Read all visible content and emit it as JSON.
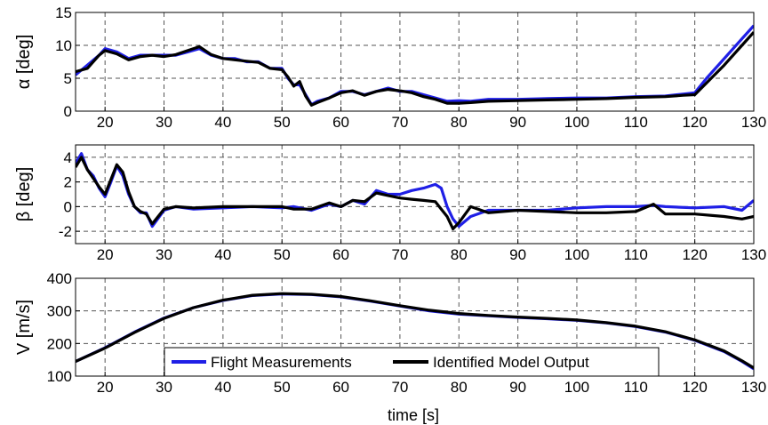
{
  "figure": {
    "xlabel": "time [s]",
    "legend": {
      "placement": "bottom-center",
      "entries": [
        {
          "label": "Flight Measurements",
          "color": "#1f1fe6"
        },
        {
          "label": "Identified Model Output",
          "color": "#000000"
        }
      ]
    }
  },
  "chart_data": [
    {
      "type": "line",
      "title": "",
      "xlabel": "",
      "ylabel": "α [deg]",
      "xlim": [
        15,
        130
      ],
      "ylim": [
        0,
        15
      ],
      "xticks": [
        "20",
        "30",
        "40",
        "50",
        "60",
        "70",
        "80",
        "90",
        "100",
        "110",
        "120",
        "130"
      ],
      "yticks": [
        "0",
        "5",
        "10",
        "15"
      ],
      "grid": true,
      "series": [
        {
          "name": "Flight Measurements",
          "color": "#1f1fe6",
          "x": [
            15,
            17,
            19,
            20,
            22,
            24,
            26,
            28,
            30,
            32,
            34,
            36,
            38,
            40,
            42,
            44,
            46,
            48,
            50,
            51,
            52,
            53,
            54,
            55,
            56,
            58,
            60,
            62,
            64,
            66,
            68,
            70,
            72,
            74,
            76,
            78,
            80,
            82,
            85,
            90,
            95,
            100,
            105,
            110,
            115,
            118,
            120,
            122,
            125,
            128,
            130
          ],
          "y": [
            5.5,
            7,
            8.5,
            9.5,
            9,
            8,
            8.5,
            8.5,
            8.5,
            8.5,
            9,
            9.5,
            8.5,
            8,
            8,
            7.5,
            7.5,
            6.5,
            6.5,
            5,
            4,
            4,
            2.5,
            1,
            1.5,
            2,
            3,
            3,
            2.5,
            3,
            3.5,
            3,
            3,
            2.5,
            2,
            1.5,
            1.6,
            1.5,
            1.8,
            1.8,
            1.9,
            2,
            2,
            2.2,
            2.3,
            2.6,
            2.8,
            5,
            8,
            11,
            13
          ]
        },
        {
          "name": "Identified Model Output",
          "color": "#000000",
          "x": [
            15,
            17,
            19,
            20,
            22,
            24,
            26,
            28,
            30,
            32,
            34,
            36,
            38,
            40,
            42,
            44,
            46,
            48,
            50,
            51,
            52,
            53,
            54,
            55,
            56,
            58,
            60,
            62,
            64,
            66,
            68,
            70,
            72,
            74,
            76,
            78,
            80,
            82,
            85,
            90,
            95,
            100,
            105,
            110,
            115,
            118,
            120,
            122,
            125,
            128,
            130
          ],
          "y": [
            6,
            6.5,
            8.5,
            9.2,
            8.7,
            7.8,
            8.3,
            8.5,
            8.3,
            8.6,
            9.2,
            9.8,
            8.6,
            8,
            7.8,
            7.6,
            7.4,
            6.5,
            6.3,
            5.2,
            3.8,
            4.5,
            2.3,
            0.9,
            1.3,
            2,
            2.8,
            3.1,
            2.4,
            3,
            3.3,
            3.1,
            2.8,
            2.2,
            1.8,
            1.2,
            1.2,
            1.3,
            1.5,
            1.6,
            1.7,
            1.8,
            1.9,
            2.1,
            2.2,
            2.4,
            2.5,
            4.3,
            7,
            10,
            12
          ]
        }
      ]
    },
    {
      "type": "line",
      "title": "",
      "xlabel": "",
      "ylabel": "β [deg]",
      "xlim": [
        15,
        130
      ],
      "ylim": [
        -3,
        5
      ],
      "xticks": [
        "20",
        "30",
        "40",
        "50",
        "60",
        "70",
        "80",
        "90",
        "100",
        "110",
        "120",
        "130"
      ],
      "yticks": [
        "-2",
        "0",
        "2",
        "4"
      ],
      "grid": true,
      "series": [
        {
          "name": "Flight Measurements",
          "color": "#1f1fe6",
          "x": [
            15,
            16,
            17,
            18,
            19,
            20,
            21,
            22,
            23,
            24,
            25,
            26,
            27,
            28,
            30,
            32,
            35,
            40,
            45,
            50,
            52,
            55,
            58,
            60,
            62,
            64,
            66,
            68,
            70,
            72,
            74,
            76,
            77,
            78,
            79,
            80,
            82,
            85,
            90,
            95,
            100,
            105,
            110,
            113,
            115,
            120,
            125,
            128,
            130
          ],
          "y": [
            3.5,
            4.3,
            3,
            2.5,
            1.5,
            0.8,
            2,
            3.3,
            2.5,
            1,
            0,
            -0.5,
            -0.5,
            -1.6,
            -0.3,
            0,
            -0.2,
            -0.1,
            0,
            -0.1,
            0,
            -0.3,
            0.2,
            0,
            0.5,
            0.2,
            1.3,
            1,
            1,
            1.3,
            1.5,
            1.8,
            1.5,
            0,
            -1,
            -1.6,
            -0.8,
            -0.3,
            -0.3,
            -0.3,
            -0.1,
            0,
            0,
            0.1,
            0,
            -0.1,
            0,
            -0.3,
            0.5
          ]
        },
        {
          "name": "Identified Model Output",
          "color": "#000000",
          "x": [
            15,
            16,
            17,
            18,
            19,
            20,
            21,
            22,
            23,
            24,
            25,
            26,
            27,
            28,
            30,
            32,
            35,
            40,
            45,
            50,
            52,
            55,
            58,
            60,
            62,
            64,
            66,
            68,
            70,
            72,
            74,
            76,
            77,
            78,
            79,
            80,
            82,
            85,
            90,
            95,
            100,
            105,
            110,
            113,
            115,
            120,
            125,
            128,
            130
          ],
          "y": [
            3.2,
            4,
            3,
            2.3,
            1.6,
            1,
            2.2,
            3.4,
            2.8,
            1.2,
            0,
            -0.4,
            -0.6,
            -1.4,
            -0.2,
            0,
            -0.1,
            0,
            0,
            0,
            -0.2,
            -0.2,
            0.3,
            0,
            0.5,
            0.4,
            1.1,
            0.9,
            0.7,
            0.6,
            0.5,
            0.4,
            -0.2,
            -0.8,
            -1.8,
            -1.3,
            0,
            -0.5,
            -0.3,
            -0.4,
            -0.5,
            -0.5,
            -0.4,
            0.2,
            -0.6,
            -0.6,
            -0.8,
            -1,
            -0.8
          ]
        }
      ]
    },
    {
      "type": "line",
      "title": "",
      "xlabel": "time [s]",
      "ylabel": "V [m/s]",
      "xlim": [
        15,
        130
      ],
      "ylim": [
        100,
        400
      ],
      "xticks": [
        "20",
        "30",
        "40",
        "50",
        "60",
        "70",
        "80",
        "90",
        "100",
        "110",
        "120",
        "130"
      ],
      "yticks": [
        "100",
        "200",
        "300",
        "400"
      ],
      "grid": true,
      "series": [
        {
          "name": "Flight Measurements",
          "color": "#1f1fe6",
          "x": [
            15,
            20,
            25,
            30,
            35,
            40,
            45,
            50,
            55,
            60,
            65,
            70,
            75,
            80,
            85,
            90,
            95,
            100,
            105,
            110,
            115,
            120,
            125,
            128,
            130
          ],
          "y": [
            145,
            187,
            235,
            278,
            310,
            332,
            347,
            352,
            350,
            343,
            330,
            315,
            300,
            290,
            285,
            280,
            276,
            271,
            263,
            252,
            235,
            210,
            175,
            145,
            122
          ]
        },
        {
          "name": "Identified Model Output",
          "color": "#000000",
          "x": [
            15,
            20,
            25,
            30,
            35,
            40,
            45,
            50,
            55,
            60,
            65,
            70,
            75,
            80,
            85,
            90,
            95,
            100,
            105,
            110,
            115,
            120,
            125,
            128,
            130
          ],
          "y": [
            145,
            186,
            234,
            277,
            310,
            333,
            348,
            353,
            351,
            344,
            331,
            316,
            302,
            292,
            286,
            281,
            277,
            272,
            264,
            253,
            236,
            211,
            177,
            147,
            125
          ]
        }
      ]
    }
  ]
}
